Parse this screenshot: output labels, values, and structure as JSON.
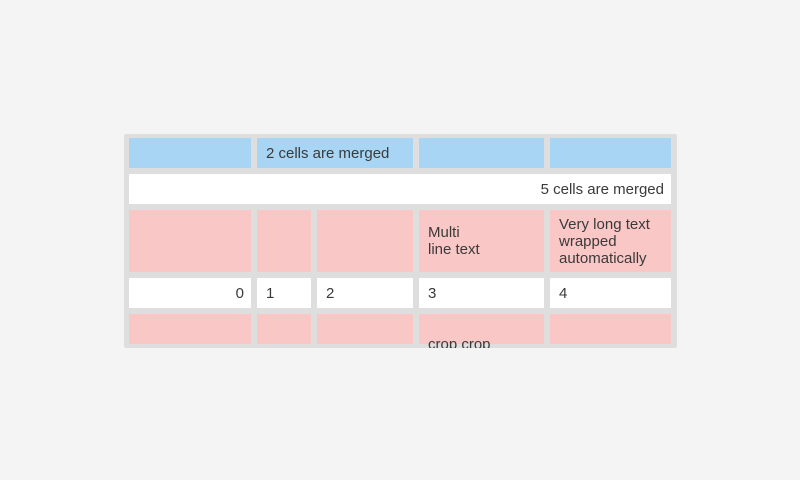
{
  "page": {
    "background": "#f4f4f5"
  },
  "table": {
    "colors": {
      "page_bg": "#f4f4f5",
      "grid_background": "#dedede",
      "header_blue": "#a9d5f5",
      "accent_pink": "#fac7c7",
      "cell_white": "#ffffff",
      "text": "#3a3a3a"
    },
    "row1": {
      "col1": "",
      "merged_2cells": "2 cells are merged",
      "col4": "",
      "col5": ""
    },
    "row2": {
      "merged_5cells": "5 cells are merged"
    },
    "row3": {
      "col1": "",
      "col2": "",
      "col3": "",
      "multi_line": "Multi\nline text",
      "wrapped": "Very long text wrapped automatically"
    },
    "row4": {
      "col1": "0",
      "col2": "1",
      "col3": "2",
      "col4": "3",
      "col5": "4"
    },
    "row5": {
      "col1": "",
      "col2": "",
      "col3": "",
      "crop": "crop crop crop crop",
      "col5": ""
    }
  }
}
